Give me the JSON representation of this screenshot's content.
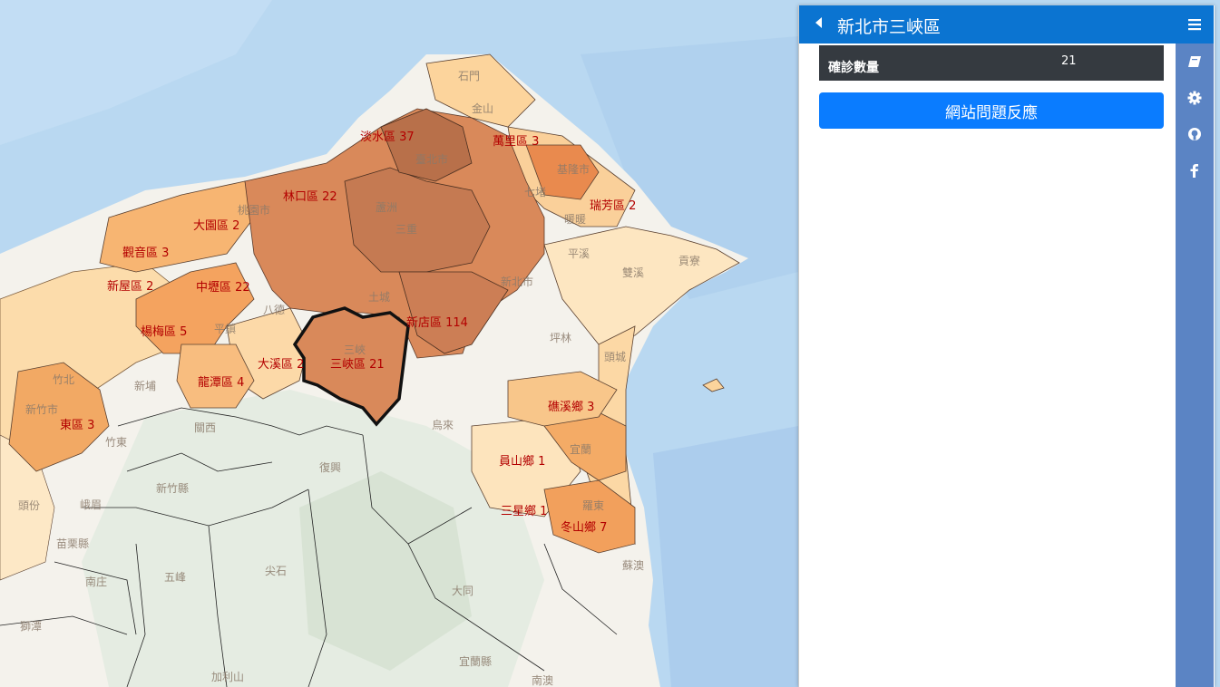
{
  "sidebar": {
    "title": "新北市三峽區",
    "info_label": "確診數量",
    "info_value": "21",
    "feedback_label": "網站問題反應"
  },
  "tabs": [
    {
      "name": "menu",
      "icon": "bars-icon"
    },
    {
      "name": "book",
      "icon": "book-icon"
    },
    {
      "name": "settings",
      "icon": "gear-icon"
    },
    {
      "name": "github",
      "icon": "github-icon"
    },
    {
      "name": "facebook",
      "icon": "facebook-icon"
    }
  ],
  "map": {
    "selected_region": "三峽區",
    "case_labels": [
      {
        "id": "tamsui",
        "text": "淡水區 37"
      },
      {
        "id": "wanli",
        "text": "萬里區 3"
      },
      {
        "id": "linkou",
        "text": "林口區 22"
      },
      {
        "id": "ruifang",
        "text": "瑞芳區 2"
      },
      {
        "id": "dayuan",
        "text": "大園區 2"
      },
      {
        "id": "guanyin",
        "text": "觀音區 3"
      },
      {
        "id": "xinwu",
        "text": "新屋區 2"
      },
      {
        "id": "zhongli",
        "text": "中壢區 22"
      },
      {
        "id": "yangmei",
        "text": "楊梅區 5"
      },
      {
        "id": "xindian",
        "text": "新店區 114"
      },
      {
        "id": "daxi",
        "text": "大溪區 2"
      },
      {
        "id": "sanxia",
        "text": "三峽區 21"
      },
      {
        "id": "longtan",
        "text": "龍潭區 4"
      },
      {
        "id": "east",
        "text": "東區 3"
      },
      {
        "id": "jiaoxi",
        "text": "礁溪鄉 3"
      },
      {
        "id": "yuanshan",
        "text": "員山鄉 1"
      },
      {
        "id": "sanxing",
        "text": "三星鄉 1"
      },
      {
        "id": "dongshan",
        "text": "冬山鄉 7"
      }
    ],
    "place_labels": [
      {
        "id": "shimen",
        "text": "石門"
      },
      {
        "id": "jinshan",
        "text": "金山"
      },
      {
        "id": "taipei",
        "text": "臺北市"
      },
      {
        "id": "qidu",
        "text": "七堵"
      },
      {
        "id": "taoyuan",
        "text": "桃園市"
      },
      {
        "id": "luzhou",
        "text": "蘆洲"
      },
      {
        "id": "sanchong",
        "text": "三重"
      },
      {
        "id": "pingxi",
        "text": "平溪"
      },
      {
        "id": "shuangxi",
        "text": "雙溪"
      },
      {
        "id": "gongliao",
        "text": "貢寮"
      },
      {
        "id": "newtaipei",
        "text": "新北市"
      },
      {
        "id": "tucheng",
        "text": "土城"
      },
      {
        "id": "bade",
        "text": "八德"
      },
      {
        "id": "pingzhen",
        "text": "平鎮"
      },
      {
        "id": "sanxia_place",
        "text": "三峽"
      },
      {
        "id": "pinglin",
        "text": "坪林"
      },
      {
        "id": "toucheng",
        "text": "頭城"
      },
      {
        "id": "zhubei",
        "text": "竹北"
      },
      {
        "id": "xinpu",
        "text": "新埔"
      },
      {
        "id": "guanxi",
        "text": "關西"
      },
      {
        "id": "wulai",
        "text": "烏來"
      },
      {
        "id": "fuxing",
        "text": "復興"
      },
      {
        "id": "hsinchu_county",
        "text": "新竹縣"
      },
      {
        "id": "toufen",
        "text": "頭份"
      },
      {
        "id": "emei",
        "text": "峨眉"
      },
      {
        "id": "miaoli",
        "text": "苗栗縣"
      },
      {
        "id": "nanzhuang",
        "text": "南庄"
      },
      {
        "id": "wufeng",
        "text": "五峰"
      },
      {
        "id": "jianshi",
        "text": "尖石"
      },
      {
        "id": "datong",
        "text": "大同"
      },
      {
        "id": "suao",
        "text": "蘇澳"
      },
      {
        "id": "yilan",
        "text": "宜蘭縣"
      },
      {
        "id": "jialishan",
        "text": "加利山"
      },
      {
        "id": "nanao",
        "text": "南澳"
      },
      {
        "id": "shitan",
        "text": "獅潭"
      },
      {
        "id": "zhudong",
        "text": "竹東"
      },
      {
        "id": "hsinchu_city",
        "text": "新竹市"
      },
      {
        "id": "keelung",
        "text": "基隆市"
      },
      {
        "id": "nuannuan",
        "text": "暖暖"
      },
      {
        "id": "yilan_city",
        "text": "宜蘭"
      },
      {
        "id": "luodong",
        "text": "羅東"
      }
    ]
  }
}
